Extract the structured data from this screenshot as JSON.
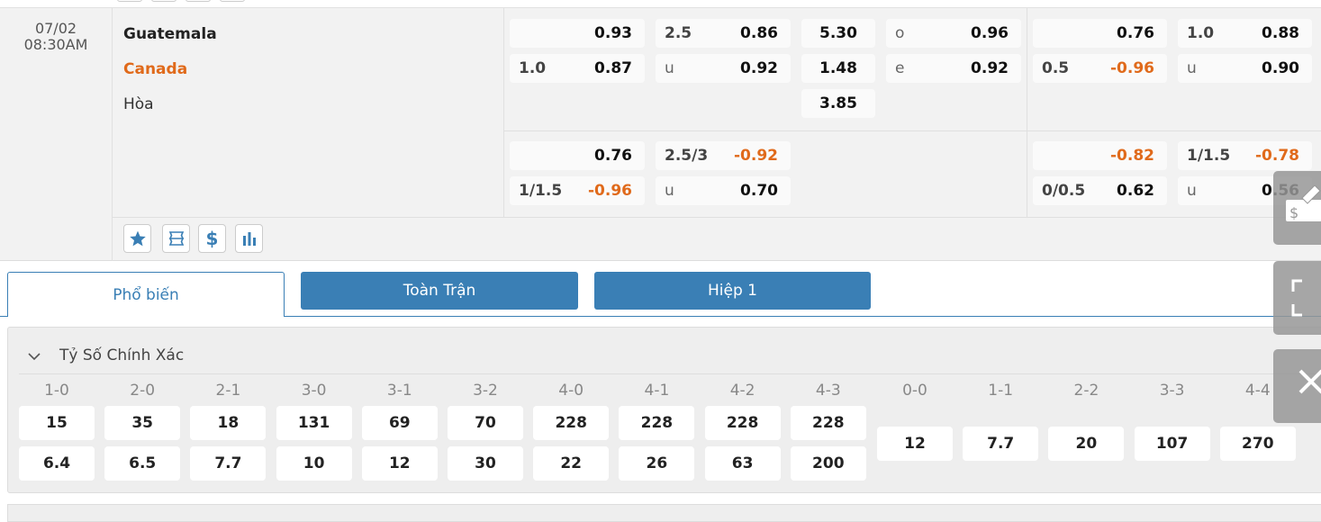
{
  "match": {
    "date": "07/02",
    "time": "08:30AM",
    "home": "Guatemala",
    "away": "Canada",
    "draw": "Hòa"
  },
  "colors": {
    "accent": "#3a7fb5",
    "negative": "#e06a1b",
    "away_team": "#e06a1b"
  },
  "odds_full": {
    "main": [
      [
        {
          "l": "",
          "r": "0.93"
        },
        {
          "l": "2.5",
          "r": "0.86"
        },
        {
          "l": "",
          "r": "5.30"
        },
        {
          "l": "o",
          "r": "0.96"
        }
      ],
      [
        {
          "l": "1.0",
          "r": "0.87"
        },
        {
          "l": "u",
          "r": "0.92"
        },
        {
          "l": "",
          "r": "1.48"
        },
        {
          "l": "e",
          "r": "0.92"
        }
      ],
      [
        null,
        null,
        {
          "l": "",
          "r": "3.85"
        },
        null
      ]
    ],
    "alt": [
      [
        {
          "l": "",
          "r": "0.76"
        },
        {
          "l": "2.5/3",
          "r": "-0.92"
        }
      ],
      [
        {
          "l": "1/1.5",
          "r": "-0.96"
        },
        {
          "l": "u",
          "r": "0.70"
        }
      ]
    ]
  },
  "odds_half": {
    "main": [
      [
        {
          "l": "",
          "r": "0.76"
        },
        {
          "l": "1.0",
          "r": "0.88"
        }
      ],
      [
        {
          "l": "0.5",
          "r": "-0.96"
        },
        {
          "l": "u",
          "r": "0.90"
        }
      ]
    ],
    "alt": [
      [
        {
          "l": "",
          "r": "-0.82"
        },
        {
          "l": "1/1.5",
          "r": "-0.78"
        }
      ],
      [
        {
          "l": "0/0.5",
          "r": "0.62"
        },
        {
          "l": "u",
          "r": "0.56"
        }
      ]
    ]
  },
  "action_icons": [
    "star-icon",
    "ticket-icon",
    "dollar-icon",
    "stats-icon"
  ],
  "tabs": [
    {
      "label": "Phổ biến",
      "active": true
    },
    {
      "label": "Toàn Trận",
      "active": false
    },
    {
      "label": "Hiệp 1",
      "active": false
    }
  ],
  "section": {
    "title": "Tỷ Số Chính Xác",
    "scores": [
      {
        "label": "1-0",
        "home": "15",
        "away": "6.4"
      },
      {
        "label": "2-0",
        "home": "35",
        "away": "6.5"
      },
      {
        "label": "2-1",
        "home": "18",
        "away": "7.7"
      },
      {
        "label": "3-0",
        "home": "131",
        "away": "10"
      },
      {
        "label": "3-1",
        "home": "69",
        "away": "12"
      },
      {
        "label": "3-2",
        "home": "70",
        "away": "30"
      },
      {
        "label": "4-0",
        "home": "228",
        "away": "22"
      },
      {
        "label": "4-1",
        "home": "228",
        "away": "26"
      },
      {
        "label": "4-2",
        "home": "228",
        "away": "63"
      },
      {
        "label": "4-3",
        "home": "228",
        "away": "200"
      }
    ],
    "draws": [
      {
        "label": "0-0",
        "value": "12"
      },
      {
        "label": "1-1",
        "value": "7.7"
      },
      {
        "label": "2-2",
        "value": "20"
      },
      {
        "label": "3-3",
        "value": "107"
      },
      {
        "label": "4-4",
        "value": "270"
      }
    ]
  },
  "float_buttons": [
    "bet-slip-icon",
    "expand-icon",
    "close-icon"
  ]
}
